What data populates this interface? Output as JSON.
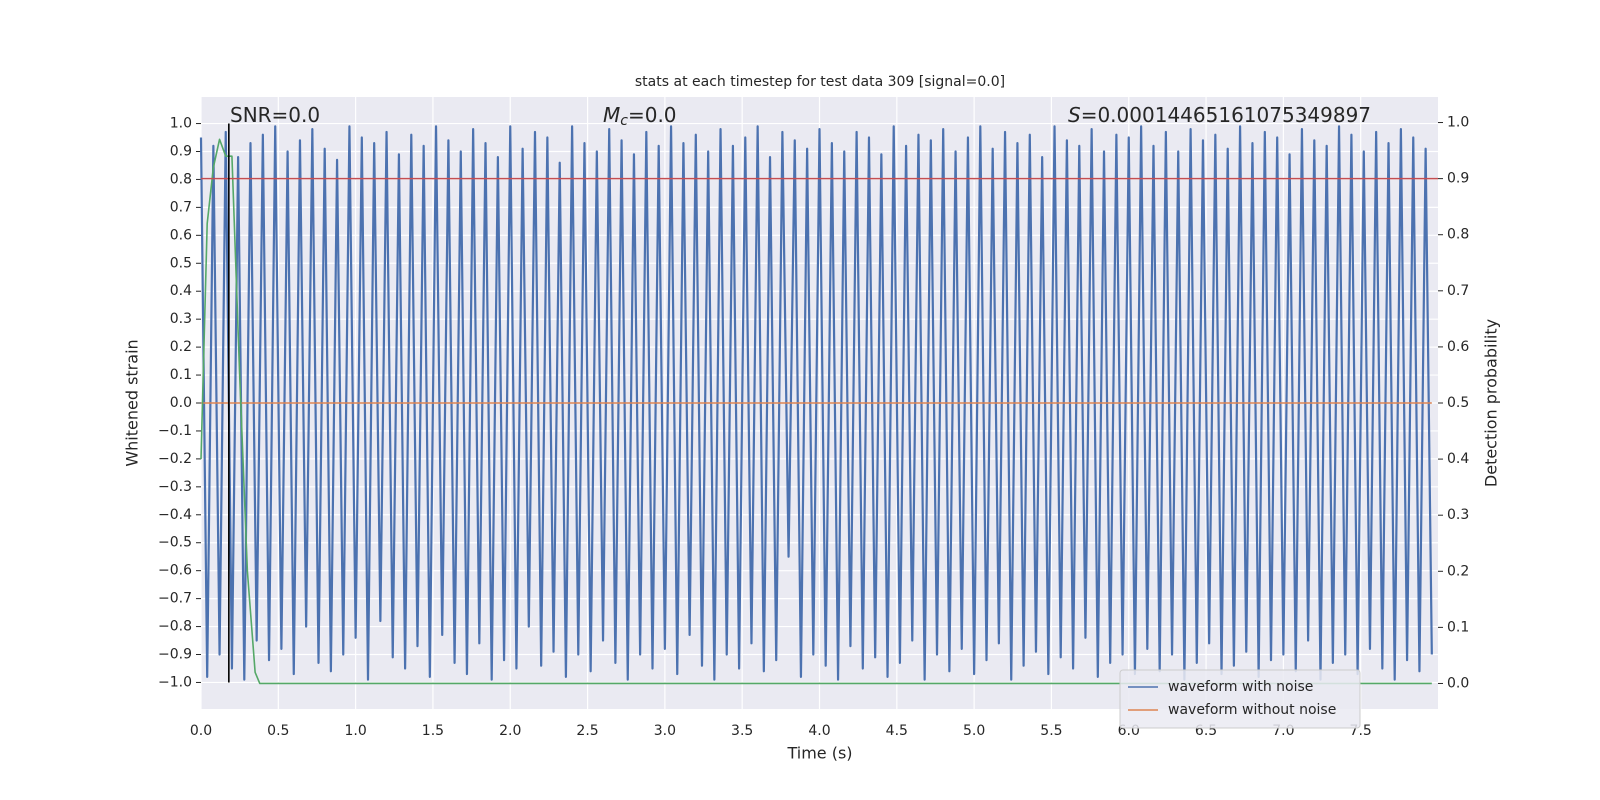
{
  "chart_data": {
    "type": "line",
    "title": "stats at each timestep for test data 309 [signal=0.0]",
    "xlabel": "Time (s)",
    "ylabel": "Whitened strain",
    "y2label": "Detection probability",
    "xlim": [
      0,
      8.0
    ],
    "ylim": [
      -1.095,
      1.095
    ],
    "y2lim": [
      -0.0455,
      1.0455
    ],
    "xticks": [
      {
        "value": 0,
        "label": "0.0"
      },
      {
        "value": 0.5,
        "label": "0.5"
      },
      {
        "value": 1,
        "label": "1.0"
      },
      {
        "value": 1.5,
        "label": "1.5"
      },
      {
        "value": 2,
        "label": "2.0"
      },
      {
        "value": 2.5,
        "label": "2.5"
      },
      {
        "value": 3,
        "label": "3.0"
      },
      {
        "value": 3.5,
        "label": "3.5"
      },
      {
        "value": 4,
        "label": "4.0"
      },
      {
        "value": 4.5,
        "label": "4.5"
      },
      {
        "value": 5,
        "label": "5.0"
      },
      {
        "value": 5.5,
        "label": "5.5"
      },
      {
        "value": 6,
        "label": "6.0"
      },
      {
        "value": 6.5,
        "label": "6.5"
      },
      {
        "value": 7,
        "label": "7.0"
      },
      {
        "value": 7.5,
        "label": "7.5"
      }
    ],
    "yticks": [
      {
        "value": 1,
        "label": "1.0"
      },
      {
        "value": 0.9,
        "label": "0.9"
      },
      {
        "value": 0.8,
        "label": "0.8"
      },
      {
        "value": 0.7,
        "label": "0.7"
      },
      {
        "value": 0.6,
        "label": "0.6"
      },
      {
        "value": 0.5,
        "label": "0.5"
      },
      {
        "value": 0.4,
        "label": "0.4"
      },
      {
        "value": 0.3,
        "label": "0.3"
      },
      {
        "value": 0.2,
        "label": "0.2"
      },
      {
        "value": 0.1,
        "label": "0.1"
      },
      {
        "value": 0,
        "label": "0.0"
      },
      {
        "value": -0.1,
        "label": "−0.1"
      },
      {
        "value": -0.2,
        "label": "−0.2"
      },
      {
        "value": -0.3,
        "label": "−0.3"
      },
      {
        "value": -0.4,
        "label": "−0.4"
      },
      {
        "value": -0.5,
        "label": "−0.5"
      },
      {
        "value": -0.6,
        "label": "−0.6"
      },
      {
        "value": -0.7,
        "label": "−0.7"
      },
      {
        "value": -0.8,
        "label": "−0.8"
      },
      {
        "value": -0.9,
        "label": "−0.9"
      },
      {
        "value": -1,
        "label": "−1.0"
      }
    ],
    "y2ticks": [
      {
        "value": 1,
        "label": "1.0"
      },
      {
        "value": 0.9,
        "label": "0.9"
      },
      {
        "value": 0.8,
        "label": "0.8"
      },
      {
        "value": 0.7,
        "label": "0.7"
      },
      {
        "value": 0.6,
        "label": "0.6"
      },
      {
        "value": 0.5,
        "label": "0.5"
      },
      {
        "value": 0.4,
        "label": "0.4"
      },
      {
        "value": 0.3,
        "label": "0.3"
      },
      {
        "value": 0.2,
        "label": "0.2"
      },
      {
        "value": 0.1,
        "label": "0.1"
      },
      {
        "value": 0,
        "label": "0.0"
      }
    ],
    "grid": true,
    "legend": "lower right",
    "series": [
      {
        "name": "waveform with noise",
        "color": "#4c72b0",
        "x": [
          0,
          0.04,
          0.08,
          0.12,
          0.16,
          0.2,
          0.24,
          0.28,
          0.32,
          0.36,
          0.4,
          0.44,
          0.48,
          0.52,
          0.56,
          0.6,
          0.64,
          0.68,
          0.72,
          0.76,
          0.8,
          0.84,
          0.88,
          0.92,
          0.96,
          1,
          1.04,
          1.08,
          1.12,
          1.16,
          1.2,
          1.24,
          1.28,
          1.32,
          1.36,
          1.4,
          1.44,
          1.48,
          1.52,
          1.56,
          1.6,
          1.64,
          1.68,
          1.72,
          1.76,
          1.8,
          1.84,
          1.88,
          1.92,
          1.96,
          2,
          2.04,
          2.08,
          2.12,
          2.16,
          2.2,
          2.24,
          2.28,
          2.32,
          2.36,
          2.4,
          2.44,
          2.48,
          2.52,
          2.56,
          2.6,
          2.64,
          2.68,
          2.72,
          2.76,
          2.8,
          2.84,
          2.88,
          2.92,
          2.96,
          3,
          3.04,
          3.08,
          3.12,
          3.16,
          3.2,
          3.24,
          3.28,
          3.32,
          3.36,
          3.4,
          3.44,
          3.48,
          3.52,
          3.56,
          3.6,
          3.64,
          3.68,
          3.72,
          3.76,
          3.8,
          3.84,
          3.88,
          3.92,
          3.96,
          4,
          4.04,
          4.08,
          4.12,
          4.16,
          4.2,
          4.24,
          4.28,
          4.32,
          4.36,
          4.4,
          4.44,
          4.48,
          4.52,
          4.56,
          4.6,
          4.64,
          4.68,
          4.72,
          4.76,
          4.8,
          4.84,
          4.88,
          4.92,
          4.96,
          5,
          5.04,
          5.08,
          5.12,
          5.16,
          5.2,
          5.24,
          5.28,
          5.32,
          5.36,
          5.4,
          5.44,
          5.48,
          5.52,
          5.56,
          5.6,
          5.64,
          5.68,
          5.72,
          5.76,
          5.8,
          5.84,
          5.88,
          5.92,
          5.96,
          6,
          6.04,
          6.08,
          6.12,
          6.16,
          6.2,
          6.24,
          6.28,
          6.32,
          6.36,
          6.4,
          6.44,
          6.48,
          6.52,
          6.56,
          6.6,
          6.64,
          6.68,
          6.72,
          6.76,
          6.8,
          6.84,
          6.88,
          6.92,
          6.96,
          7,
          7.04,
          7.08,
          7.12,
          7.16,
          7.2,
          7.24,
          7.28,
          7.32,
          7.36,
          7.4,
          7.44,
          7.48,
          7.52,
          7.56,
          7.6,
          7.64,
          7.68,
          7.72,
          7.76,
          7.8,
          7.84,
          7.88,
          7.92,
          7.96
        ],
        "values": [
          0.95,
          -0.98,
          0.92,
          -0.9,
          0.97,
          -0.95,
          0.88,
          -0.99,
          0.93,
          -0.85,
          0.96,
          -0.92,
          0.99,
          -0.88,
          0.9,
          -0.97,
          0.94,
          -0.8,
          0.98,
          -0.93,
          0.91,
          -0.96,
          0.87,
          -0.9,
          0.99,
          -0.84,
          0.95,
          -0.99,
          0.93,
          -0.78,
          0.97,
          -0.91,
          0.89,
          -0.95,
          0.96,
          -0.87,
          0.92,
          -0.98,
          0.99,
          -0.83,
          0.94,
          -0.93,
          0.9,
          -0.97,
          0.98,
          -0.86,
          0.93,
          -0.99,
          0.88,
          -0.92,
          0.99,
          -0.95,
          0.91,
          -0.8,
          0.97,
          -0.94,
          0.95,
          -0.89,
          0.86,
          -0.98,
          0.99,
          -0.9,
          0.93,
          -0.96,
          0.9,
          -0.85,
          0.98,
          -0.93,
          0.94,
          -0.99,
          0.89,
          -0.9,
          0.97,
          -0.95,
          0.92,
          -0.88,
          0.99,
          -0.97,
          0.93,
          -0.83,
          0.96,
          -0.94,
          0.9,
          -0.99,
          0.98,
          -0.9,
          0.92,
          -0.95,
          0.95,
          -0.86,
          0.99,
          -0.96,
          0.88,
          -0.92,
          0.97,
          -0.55,
          0.94,
          -0.98,
          0.91,
          -0.9,
          0.98,
          -0.94,
          0.93,
          -0.99,
          0.9,
          -0.87,
          0.97,
          -0.95,
          0.95,
          -0.91,
          0.89,
          -0.98,
          0.99,
          -0.93,
          0.92,
          -0.85,
          0.96,
          -0.99,
          0.94,
          -0.9,
          0.98,
          -0.96,
          0.9,
          -0.88,
          0.95,
          -0.97,
          0.99,
          -0.92,
          0.91,
          -0.86,
          0.97,
          -0.99,
          0.93,
          -0.94,
          0.96,
          -0.89,
          0.88,
          -0.97,
          0.99,
          -0.91,
          0.94,
          -0.95,
          0.92,
          -0.84,
          0.98,
          -0.98,
          0.9,
          -0.93,
          0.96,
          -0.9,
          0.95,
          -0.97,
          0.99,
          -0.88,
          0.92,
          -0.96,
          0.97,
          -0.9,
          0.9,
          -0.99,
          0.98,
          -0.93,
          0.94,
          -0.86,
          0.96,
          -0.97,
          0.91,
          -0.94,
          0.99,
          -0.89,
          0.93,
          -0.98,
          0.97,
          -0.92,
          0.95,
          -0.9,
          0.89,
          -0.96,
          0.98,
          -0.85,
          0.94,
          -0.99,
          0.92,
          -0.93,
          0.99,
          -0.9,
          0.96,
          -0.97,
          0.9,
          -0.88,
          0.97,
          -0.95,
          0.93,
          -0.99,
          0.98,
          -0.92,
          0.95,
          -0.96,
          0.91,
          -0.9
        ]
      },
      {
        "name": "waveform without noise",
        "color": "#dd8452",
        "x": [
          0,
          7.96
        ],
        "values": [
          0,
          0
        ]
      },
      {
        "color": "#55a868",
        "axis": "y2",
        "x": [
          0,
          0.04,
          0.08,
          0.12,
          0.16,
          0.2,
          0.25,
          0.3,
          0.35,
          0.38,
          7.96
        ],
        "values": [
          0.4,
          0.82,
          0.92,
          0.97,
          0.94,
          0.94,
          0.55,
          0.2,
          0.02,
          0,
          0
        ]
      }
    ],
    "hlines": [
      {
        "value": 0.9,
        "axis": "y2",
        "color": "#c44e52"
      }
    ],
    "vlines": [
      {
        "x": 0.18,
        "ymin": -1,
        "ymax": 1,
        "color": "#000000"
      }
    ],
    "annotations": [
      {
        "text": "SNR=0.0"
      },
      {
        "symbol": "M",
        "subscript": "c",
        "text": "=0.0"
      },
      {
        "symbol": "S",
        "text": "=0.00014465161075349897"
      }
    ]
  }
}
